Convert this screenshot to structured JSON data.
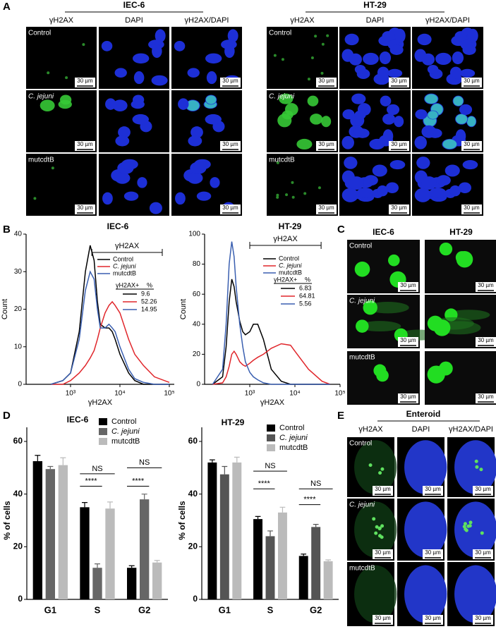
{
  "scale_bar": "30 µm",
  "panel_a": {
    "label": "A",
    "groups": [
      {
        "title": "IEC-6",
        "columns": [
          "γH2AX",
          "DAPI",
          "γH2AX/DAPI"
        ],
        "rows": [
          "Control",
          "C. jejuni",
          "mutcdtB"
        ]
      },
      {
        "title": "HT-29",
        "columns": [
          "γH2AX",
          "DAPI",
          "γH2AX/DAPI"
        ],
        "rows": [
          "Control",
          "C. jejuni",
          "mutcdtB"
        ]
      }
    ]
  },
  "panel_b": {
    "label": "B"
  },
  "panel_c": {
    "label": "C",
    "columns": [
      "IEC-6",
      "HT-29"
    ],
    "rows": [
      "Control",
      "C. jejuni",
      "mutcdtB"
    ]
  },
  "panel_d": {
    "label": "D"
  },
  "panel_e": {
    "label": "E",
    "title": "Enteroid",
    "columns": [
      "γH2AX",
      "DAPI",
      "γH2AX/DAPI"
    ],
    "rows": [
      "Control",
      "C. jejuni",
      "mutcdtB"
    ]
  },
  "chart_data": [
    {
      "type": "line",
      "title": "IEC-6",
      "x_label": "γH2AX",
      "y_label": "Count",
      "log_x": true,
      "x": [
        400,
        700,
        1000,
        1500,
        2000,
        2500,
        3000,
        3500,
        4000,
        5000,
        6000,
        7000,
        8000,
        10000,
        15000,
        20000,
        30000,
        50000,
        100000
      ],
      "xlim": [
        126,
        126000
      ],
      "xticks": [
        {
          "value": 1000,
          "label": "10³"
        },
        {
          "value": 10000,
          "label": "10⁴"
        },
        {
          "value": 100000,
          "label": "10⁵"
        }
      ],
      "ylim": [
        0,
        40
      ],
      "yticks": [
        0,
        10,
        20,
        30,
        40
      ],
      "gate": {
        "label": "γH2AX",
        "range": [
          2700,
          72000
        ]
      },
      "gate_table": {
        "header": [
          "γH2AX+",
          "%"
        ]
      },
      "series": [
        {
          "name": "Control",
          "color": "#000000",
          "values": [
            0,
            1,
            3,
            14,
            30,
            37,
            33,
            22,
            16,
            15,
            15,
            14,
            12,
            8,
            3,
            1,
            0,
            0,
            0
          ],
          "gate_percent": 9.6
        },
        {
          "name": "C. jejuni",
          "color": "#e0262b",
          "values": [
            0,
            0,
            1,
            3,
            5,
            7,
            9,
            12,
            15,
            19,
            21,
            22,
            21,
            19,
            12,
            8,
            5,
            2,
            0.5
          ],
          "gate_percent": 52.26
        },
        {
          "name": "mutcdtB",
          "color": "#3a5fb0",
          "values": [
            0,
            1,
            3,
            12,
            25,
            30,
            28,
            20,
            15,
            15,
            16,
            15,
            14,
            10,
            4,
            1.5,
            0.5,
            0,
            0
          ],
          "gate_percent": 14.95
        }
      ]
    },
    {
      "type": "line",
      "title": "HT-29",
      "x_label": "γH2AX",
      "y_label": "Count",
      "log_x": true,
      "x": [
        150,
        250,
        300,
        350,
        400,
        450,
        500,
        600,
        700,
        800,
        1000,
        1200,
        1500,
        2000,
        3000,
        5000,
        8000,
        10000,
        20000,
        40000,
        60000
      ],
      "xlim": [
        100,
        100000
      ],
      "xticks": [
        {
          "value": 1000,
          "label": "10³"
        },
        {
          "value": 10000,
          "label": "10⁴"
        },
        {
          "value": 100000,
          "label": "10⁵"
        }
      ],
      "ylim": [
        0,
        100
      ],
      "yticks": [
        0,
        20,
        40,
        60,
        80,
        100
      ],
      "gate": {
        "label": "γH2AX",
        "range": [
          1000,
          38000
        ]
      },
      "gate_table": {
        "header": [
          "γH2AX+",
          "%"
        ]
      },
      "series": [
        {
          "name": "Control",
          "color": "#000000",
          "values": [
            0,
            5,
            25,
            55,
            70,
            65,
            55,
            42,
            35,
            33,
            35,
            40,
            40,
            30,
            10,
            2,
            0,
            0,
            0,
            0,
            0
          ],
          "gate_percent": 6.83
        },
        {
          "name": "C. jejuni",
          "color": "#e0262b",
          "values": [
            0,
            1,
            5,
            12,
            20,
            22,
            20,
            15,
            13,
            12,
            14,
            16,
            18,
            20,
            24,
            27,
            26,
            22,
            10,
            2,
            0
          ],
          "gate_percent": 64.81
        },
        {
          "name": "mutcdtB",
          "color": "#3a5fb0",
          "values": [
            0,
            10,
            40,
            80,
            95,
            85,
            65,
            40,
            25,
            15,
            8,
            5,
            3,
            1,
            0,
            0,
            0,
            0,
            0,
            0,
            0
          ],
          "gate_percent": 5.56
        }
      ]
    },
    {
      "type": "bar",
      "title": "IEC-6",
      "y_label": "% of cells",
      "categories": [
        "G1",
        "S",
        "G2"
      ],
      "ylim": [
        0,
        60
      ],
      "yticks": [
        0,
        20,
        40,
        60
      ],
      "series": [
        {
          "name": "Control",
          "color": "#000000",
          "values": [
            52.5,
            35,
            12
          ],
          "errors": [
            2.2,
            1.8,
            0.8
          ]
        },
        {
          "name": "C. jejuni",
          "color": "#666666",
          "values": [
            49.5,
            12,
            38
          ],
          "errors": [
            1,
            1.5,
            2
          ]
        },
        {
          "name": "mutcdtB",
          "color": "#bbbbbb",
          "values": [
            51,
            34.5,
            14
          ],
          "errors": [
            2.8,
            2.5,
            0.8
          ]
        }
      ],
      "annotations": [
        {
          "text": "****",
          "category": 1,
          "between": [
            0,
            1
          ],
          "y": 43
        },
        {
          "text": "NS",
          "category": 1,
          "between": [
            0,
            2
          ],
          "y": 47.7
        },
        {
          "text": "****",
          "category": 2,
          "between": [
            0,
            1
          ],
          "y": 43
        },
        {
          "text": "NS",
          "category": 2,
          "between": [
            0,
            2
          ],
          "y": 50
        }
      ]
    },
    {
      "type": "bar",
      "title": "HT-29",
      "y_label": "% of cells",
      "categories": [
        "G1",
        "S",
        "G2"
      ],
      "ylim": [
        0,
        60
      ],
      "yticks": [
        0,
        20,
        40,
        60
      ],
      "series": [
        {
          "name": "Control",
          "color": "#000000",
          "values": [
            52,
            30.5,
            16.5
          ],
          "errors": [
            1,
            1,
            0.7
          ]
        },
        {
          "name": "C. jejuni",
          "color": "#555555",
          "values": [
            47.5,
            24,
            27.5
          ],
          "errors": [
            3,
            2,
            1
          ]
        },
        {
          "name": "mutcdtB",
          "color": "#bbbbbb",
          "values": [
            52,
            33,
            14.5
          ],
          "errors": [
            2,
            2,
            0.5
          ]
        }
      ],
      "annotations": [
        {
          "text": "****",
          "category": 1,
          "between": [
            0,
            1
          ],
          "y": 42
        },
        {
          "text": "NS",
          "category": 1,
          "between": [
            0,
            2
          ],
          "y": 48.7
        },
        {
          "text": "****",
          "category": 2,
          "between": [
            0,
            1
          ],
          "y": 36
        },
        {
          "text": "NS",
          "category": 2,
          "between": [
            0,
            2
          ],
          "y": 42
        }
      ]
    }
  ]
}
